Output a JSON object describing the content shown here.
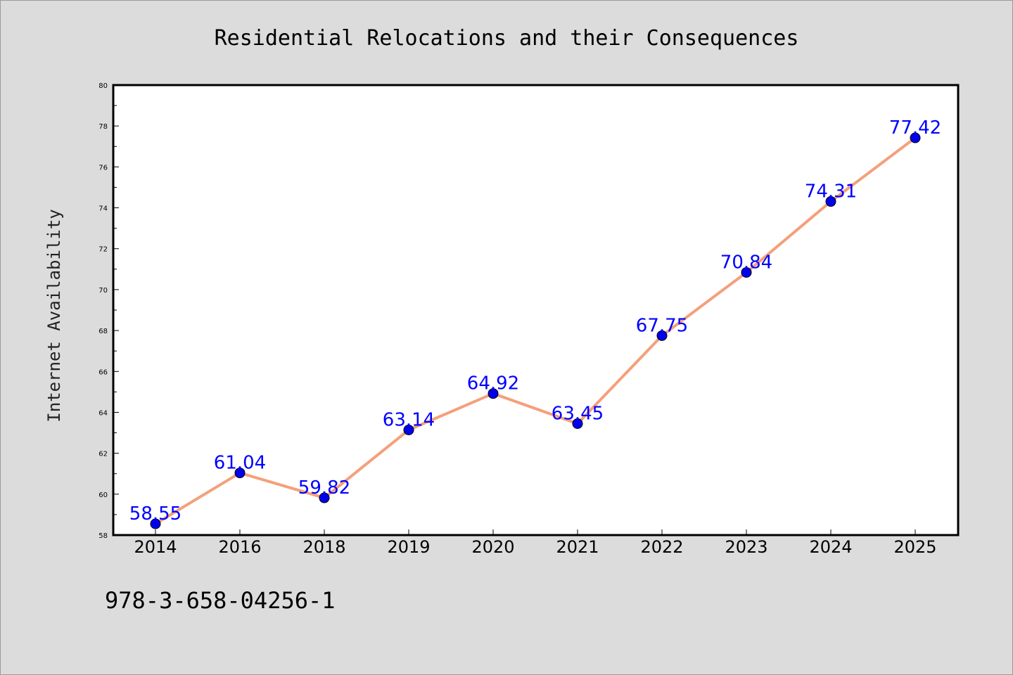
{
  "chart_data": {
    "type": "line",
    "title": "Residential Relocations and their Consequences",
    "xlabel": "",
    "ylabel": "Internet Availability",
    "categories": [
      "2014",
      "2016",
      "2018",
      "2019",
      "2020",
      "2021",
      "2022",
      "2023",
      "2024",
      "2025"
    ],
    "series": [
      {
        "values": [
          58.55,
          61.04,
          59.82,
          63.14,
          64.92,
          63.45,
          67.75,
          70.84,
          74.31,
          77.42
        ],
        "labels": [
          "58.55",
          "61.04",
          "59.82",
          "63.14",
          "64.92",
          "63.45",
          "67.75",
          "70.84",
          "74.31",
          "77.42"
        ],
        "line_color": "#f4a07a",
        "marker_color": "#0000ee"
      }
    ],
    "ylim": [
      58,
      80
    ],
    "yticks": [
      "58",
      "60",
      "62",
      "64",
      "66",
      "68",
      "70",
      "72",
      "74",
      "76",
      "78",
      "80"
    ],
    "grid": false,
    "legend": "none",
    "label_color": "#0000ff"
  },
  "footer_text": "978-3-658-04256-1",
  "colors": {
    "background": "#dcdcdc",
    "plot_background": "#ffffff"
  }
}
